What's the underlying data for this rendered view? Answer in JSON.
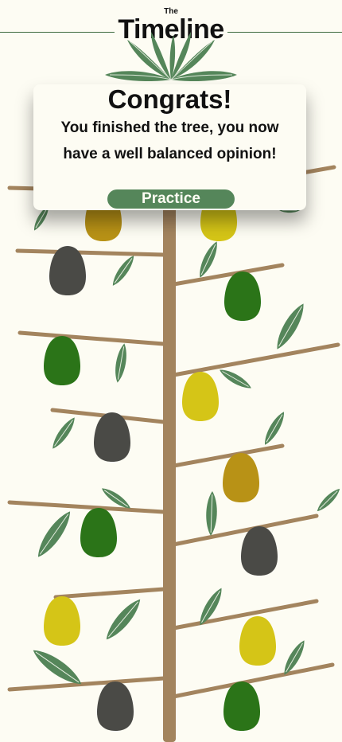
{
  "header": {
    "subtitle": "The",
    "title": "Timeline"
  },
  "modal": {
    "title": "Congrats!",
    "message": "You finished the tree, you now have a well balanced opinion!",
    "button_label": "Practice"
  },
  "colors": {
    "background": "#fdfcf3",
    "trunk": "#a3845e",
    "leaf": "#55865a",
    "button": "#55865a",
    "fruit_dark_gray": "#4a4a46",
    "fruit_green": "#2b7418",
    "fruit_yellow": "#d5c517",
    "fruit_gold": "#b89216"
  },
  "tree": {
    "fruits": [
      {
        "side": "left",
        "color": "gold"
      },
      {
        "side": "right",
        "color": "yellow"
      },
      {
        "side": "left",
        "color": "dark_gray"
      },
      {
        "side": "right",
        "color": "green"
      },
      {
        "side": "left",
        "color": "green"
      },
      {
        "side": "right",
        "color": "yellow"
      },
      {
        "side": "left",
        "color": "dark_gray"
      },
      {
        "side": "right",
        "color": "gold"
      },
      {
        "side": "left",
        "color": "green"
      },
      {
        "side": "right",
        "color": "dark_gray"
      },
      {
        "side": "left",
        "color": "yellow"
      },
      {
        "side": "right",
        "color": "yellow"
      },
      {
        "side": "left",
        "color": "dark_gray"
      },
      {
        "side": "right",
        "color": "green"
      }
    ]
  }
}
